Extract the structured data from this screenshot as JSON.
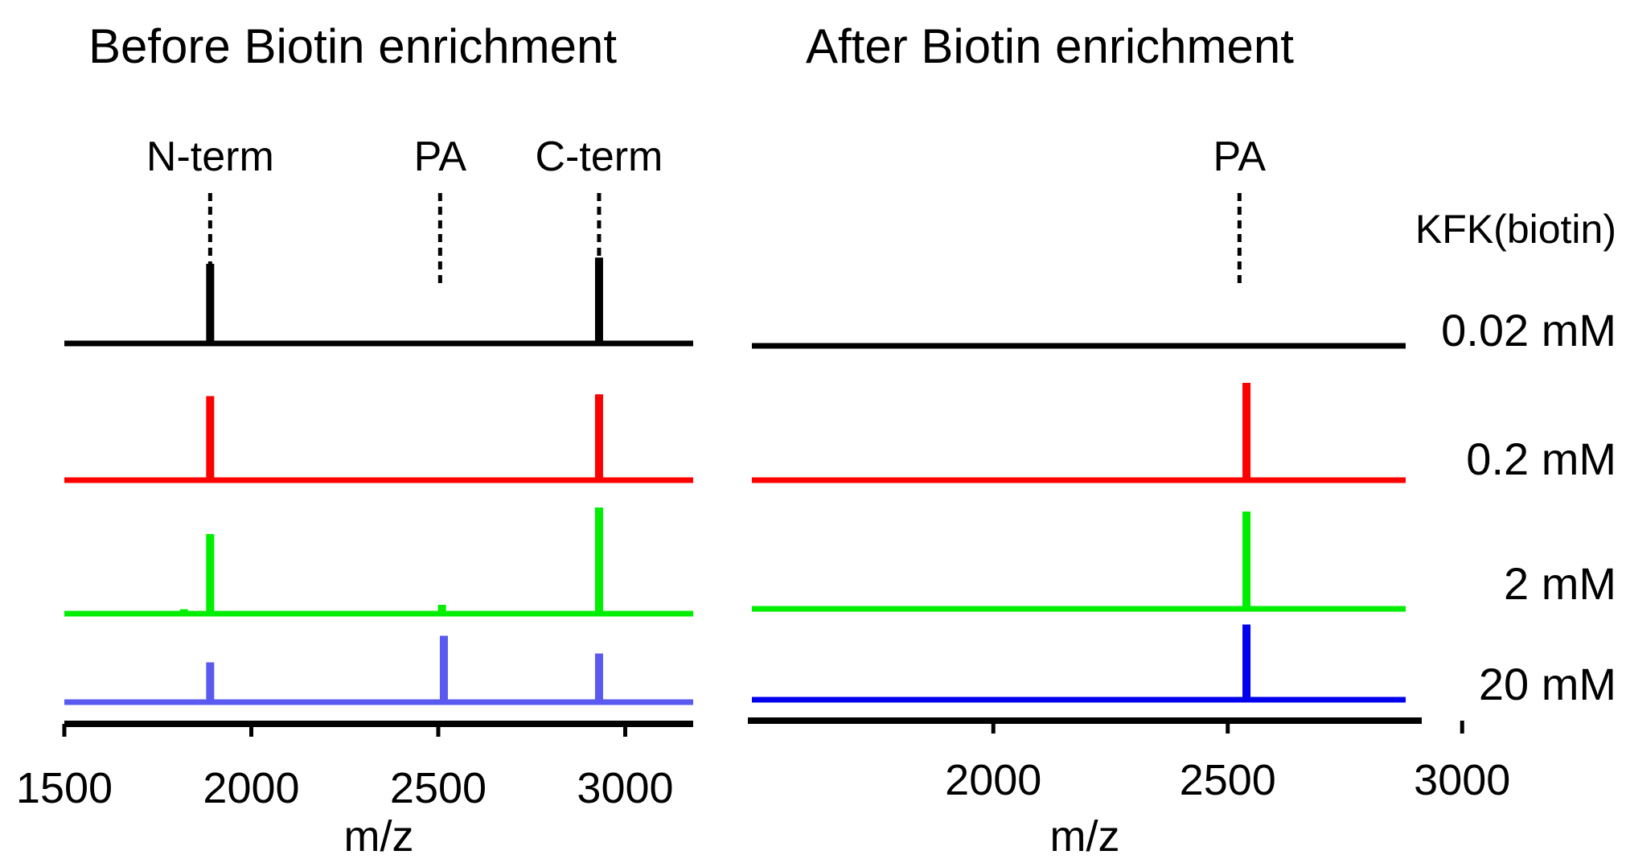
{
  "chart_data": [
    {
      "type": "line",
      "title": "Before Biotin enrichment",
      "xlabel": "m/z",
      "ylabel": "",
      "xlim": [
        1500,
        3200
      ],
      "xticks": [
        1500,
        2000,
        2500,
        3000
      ],
      "tick_labels": [
        "1500",
        "2000",
        "2500",
        "3000"
      ],
      "annotations": [
        {
          "text": "N-term",
          "x": 1890
        },
        {
          "text": "PA",
          "x": 2505
        },
        {
          "text": "C-term",
          "x": 2930
        }
      ],
      "series": [
        {
          "name": "0.02 mM",
          "color": "#000000",
          "peaks": [
            {
              "x": 1890,
              "y": 0.9
            },
            {
              "x": 2930,
              "y": 0.97
            }
          ]
        },
        {
          "name": "0.2 mM",
          "color": "#ff0000",
          "peaks": [
            {
              "x": 1890,
              "y": 0.95
            },
            {
              "x": 2930,
              "y": 0.97
            }
          ]
        },
        {
          "name": "2 mM",
          "color": "#00ee00",
          "peaks": [
            {
              "x": 1820,
              "y": 0.05
            },
            {
              "x": 1890,
              "y": 0.9
            },
            {
              "x": 2510,
              "y": 0.1
            },
            {
              "x": 2930,
              "y": 1.2
            }
          ]
        },
        {
          "name": "20 mM",
          "color": "#5a5af0",
          "peaks": [
            {
              "x": 1890,
              "y": 0.45
            },
            {
              "x": 2515,
              "y": 0.75
            },
            {
              "x": 2930,
              "y": 0.55
            }
          ]
        }
      ]
    },
    {
      "type": "line",
      "title": "After Biotin enrichment",
      "xlabel": "m/z",
      "ylabel": "",
      "xlim": [
        1720,
        3200
      ],
      "xticks": [
        2000,
        2500,
        3000
      ],
      "tick_labels": [
        "2000",
        "2500",
        "3000"
      ],
      "annotations": [
        {
          "text": "PA",
          "x": 2525
        }
      ],
      "legend_title": "KFK(biotin)",
      "series": [
        {
          "name": "0.02 mM",
          "color": "#000000",
          "peaks": []
        },
        {
          "name": "0.2 mM",
          "color": "#ff0000",
          "peaks": [
            {
              "x": 2540,
              "y": 1.1
            }
          ]
        },
        {
          "name": "2 mM",
          "color": "#00ee00",
          "peaks": [
            {
              "x": 2540,
              "y": 1.1
            }
          ]
        },
        {
          "name": "20 mM",
          "color": "#0000ee",
          "peaks": [
            {
              "x": 2540,
              "y": 0.85
            }
          ]
        }
      ]
    }
  ]
}
